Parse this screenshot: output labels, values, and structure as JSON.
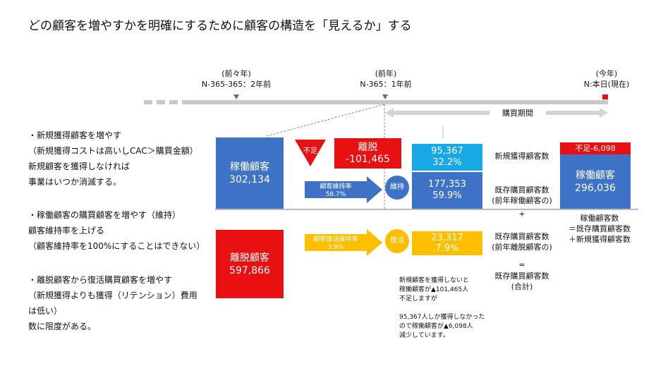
{
  "title": "どの顧客を増やすかを明確にするために顧客の構造を「見えるか」する",
  "timeline": {
    "two_years_ago": {
      "label": "(前々年)",
      "sub": "N-365-365：2年前"
    },
    "last_year": {
      "label": "(前年)",
      "sub": "N-365：1年前"
    },
    "this_year": {
      "label": "(今年)",
      "sub": "N:本日(現在)"
    },
    "period_label": "購買期間"
  },
  "left_notes": {
    "block1": [
      "・新規獲得顧客を増やす",
      "（新規獲得コストは高いしCAC＞購買金額）",
      "新規顧客を獲得しなければ",
      "事業はいつか消滅する。"
    ],
    "block2": [
      "・稼働顧客の購買顧客を増やす（維持）",
      "顧客維持率を上げる",
      "（顧客維持率を100%にすることはできない）"
    ],
    "block3": [
      "・離脱顧客から復活購買顧客を増やす",
      "（新規獲得よりも獲得（リテンション）費用",
      "は低い）",
      "数に限度がある。"
    ]
  },
  "diagram": {
    "active_prev": {
      "label": "稼働顧客",
      "value": "302,134"
    },
    "churned_prev": {
      "label": "離脱顧客",
      "value": "597,866"
    },
    "shortfall_label": "不足",
    "churn": {
      "label": "離脱",
      "value": "-101,465"
    },
    "retention_arrow": {
      "label": "顧客維持率",
      "value": "58.7%"
    },
    "retention_circle": "維持",
    "revival_arrow": {
      "label": "顧客復活維持率",
      "value": "3.9%"
    },
    "revival_circle": "復活",
    "new_customers": {
      "value": "95,367",
      "pct": "32.2%"
    },
    "retained": {
      "value": "177,353",
      "pct": "59.9%"
    },
    "revived": {
      "value": "23,317",
      "pct": "7.9%"
    },
    "active_now": {
      "shortfall": "不足-6,098",
      "label": "稼働顧客",
      "value": "296,036"
    }
  },
  "middle_labels": {
    "new_count": "新規獲得顧客数",
    "existing_active": [
      "既存購買顧客数",
      "(前年稼働顧客の)"
    ],
    "plus": "+",
    "existing_churned": [
      "既存購買顧客数",
      "(前年離脱顧客の)"
    ],
    "equals": "=",
    "existing_total": [
      "既存購買顧客数",
      "(合計)"
    ]
  },
  "formula": [
    "稼働顧客数",
    "＝既存購買顧客数",
    "＋新規獲得顧客数"
  ],
  "note": {
    "lines1": [
      "新規顧客を獲得しないと",
      "稼働顧客が▲101,465人",
      "不足しますが"
    ],
    "lines2": [
      "95,367人しか獲得しなかった",
      "ので稼働顧客が▲6,098人",
      "減少しています。"
    ]
  },
  "colors": {
    "blue": "#3e72c6",
    "red": "#e81010",
    "cyan": "#17a9e6",
    "yellow": "#ffbe00",
    "gray": "#c8c8c8"
  }
}
